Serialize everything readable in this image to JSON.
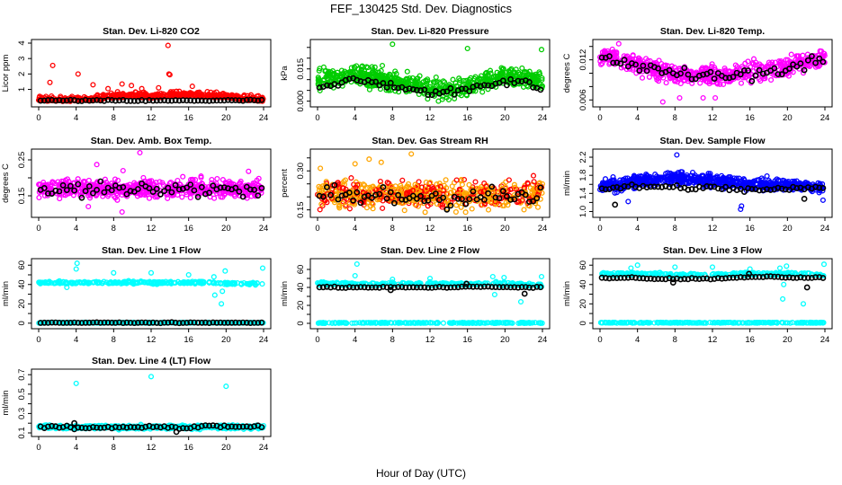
{
  "figure": {
    "title": "FEF_130425  Std. Dev. Diagnostics",
    "xlabel": "Hour of Day (UTC)"
  },
  "chart_data": [
    {
      "type": "scatter",
      "title": "Stan. Dev. Li-820 CO2",
      "ylabel": "Licor ppm",
      "xlim": [
        0,
        24
      ],
      "xticks": [
        0,
        4,
        8,
        12,
        16,
        20,
        24
      ],
      "ylim": [
        0.1,
        4
      ],
      "yticks": [
        1,
        2,
        3,
        4
      ],
      "ytick_labels": [
        "1",
        "2",
        "3",
        "4"
      ],
      "series": [
        {
          "name": "all",
          "color": "#ff0000",
          "n": 500,
          "base": [
            0.25,
            0.25,
            0.25,
            0.3,
            0.45,
            0.55,
            0.45,
            0.55,
            0.6,
            0.5,
            0.5,
            0.3,
            0.25
          ],
          "spread": 0.25,
          "skew": true,
          "outliers": [
            [
              1.2,
              1.45
            ],
            [
              1.5,
              2.55
            ],
            [
              4.2,
              2.0
            ],
            [
              5.8,
              1.3
            ],
            [
              7.4,
              1.05
            ],
            [
              8.9,
              1.35
            ],
            [
              9.9,
              1.25
            ],
            [
              11.0,
              1.05
            ],
            [
              12.8,
              1.1
            ],
            [
              13.8,
              3.85
            ],
            [
              13.9,
              2.0
            ],
            [
              14.0,
              1.95
            ],
            [
              16.4,
              1.2
            ]
          ]
        },
        {
          "name": "hourly",
          "color": "#000000",
          "n": 60,
          "base": [
            0.27,
            0.28,
            0.28,
            0.27,
            0.28,
            0.27,
            0.27,
            0.27,
            0.28,
            0.28,
            0.28,
            0.28,
            0.3
          ],
          "spread": 0.04
        }
      ]
    },
    {
      "type": "scatter",
      "title": "Stan. Dev. Li-820 Pressure",
      "ylabel": "kPa",
      "xlim": [
        0,
        24
      ],
      "xticks": [
        0,
        4,
        8,
        12,
        16,
        20,
        24
      ],
      "ylim": [
        -0.001,
        0.027
      ],
      "yticks": [
        0.0,
        0.005,
        0.01,
        0.015,
        0.02,
        0.025
      ],
      "ytick_labels": [
        "0.000",
        "",
        "",
        "0.015",
        "",
        ""
      ],
      "series": [
        {
          "name": "all",
          "color": "#00cc00",
          "n": 650,
          "base": [
            0.01,
            0.011,
            0.012,
            0.011,
            0.009,
            0.008,
            0.006,
            0.005,
            0.007,
            0.01,
            0.012,
            0.011,
            0.009
          ],
          "spread": 0.004,
          "outliers": [
            [
              8.0,
              0.0265
            ],
            [
              16.0,
              0.0245
            ],
            [
              23.9,
              0.024
            ],
            [
              12.9,
              0.0
            ]
          ]
        },
        {
          "name": "hourly",
          "color": "#000000",
          "n": 60,
          "base": [
            0.007,
            0.008,
            0.01,
            0.009,
            0.007,
            0.006,
            0.004,
            0.004,
            0.005,
            0.007,
            0.009,
            0.009,
            0.005
          ],
          "spread": 0.0015
        }
      ]
    },
    {
      "type": "scatter",
      "title": "Stan. Dev. Li-820 Temp.",
      "ylabel": "degrees C",
      "xlim": [
        0,
        24
      ],
      "xticks": [
        0,
        4,
        8,
        12,
        16,
        20,
        24
      ],
      "ylim": [
        0.0055,
        0.0145
      ],
      "yticks": [
        0.006,
        0.008,
        0.01,
        0.012,
        0.014
      ],
      "ytick_labels": [
        "0.006",
        "",
        "",
        "0.012",
        ""
      ],
      "series": [
        {
          "name": "all",
          "color": "#ff00ff",
          "n": 600,
          "base": [
            0.0125,
            0.0122,
            0.0112,
            0.0105,
            0.01,
            0.0098,
            0.0095,
            0.0098,
            0.0102,
            0.0105,
            0.011,
            0.0118,
            0.0123
          ],
          "spread": 0.0012,
          "outliers": [
            [
              2.0,
              0.0144
            ],
            [
              6.7,
              0.0057
            ],
            [
              8.5,
              0.0063
            ],
            [
              11.0,
              0.0063
            ],
            [
              12.3,
              0.0063
            ]
          ]
        },
        {
          "name": "hourly",
          "color": "#000000",
          "n": 60,
          "base": [
            0.0123,
            0.0115,
            0.0108,
            0.0105,
            0.0102,
            0.0095,
            0.0094,
            0.0098,
            0.0098,
            0.01,
            0.0108,
            0.0115,
            0.0127
          ],
          "spread": 0.0008
        }
      ]
    },
    {
      "type": "scatter",
      "title": "Stan. Dev. Amb. Box Temp.",
      "ylabel": "degrees C",
      "xlim": [
        0,
        24
      ],
      "xticks": [
        0,
        4,
        8,
        12,
        16,
        20,
        24
      ],
      "ylim": [
        0.1,
        0.27
      ],
      "yticks": [
        0.15,
        0.2,
        0.25
      ],
      "ytick_labels": [
        "0.15",
        "",
        "0.25"
      ],
      "series": [
        {
          "name": "all",
          "color": "#ff00ff",
          "n": 600,
          "base": [
            0.17,
            0.17,
            0.17,
            0.17,
            0.17,
            0.17,
            0.17,
            0.17,
            0.17,
            0.17,
            0.17,
            0.17,
            0.17
          ],
          "spread": 0.022,
          "outliers": [
            [
              10.8,
              0.27
            ],
            [
              6.2,
              0.237
            ],
            [
              9.0,
              0.22
            ],
            [
              22.4,
              0.218
            ],
            [
              8.9,
              0.105
            ],
            [
              5.3,
              0.12
            ]
          ]
        },
        {
          "name": "hourly",
          "color": "#000000",
          "n": 60,
          "base": [
            0.165,
            0.165,
            0.165,
            0.168,
            0.165,
            0.165,
            0.168,
            0.168,
            0.168,
            0.168,
            0.165,
            0.165,
            0.165
          ],
          "spread": 0.018
        }
      ]
    },
    {
      "type": "scatter",
      "title": "Stan. Dev. Gas Stream RH",
      "ylabel": "percent",
      "xlim": [
        0,
        24
      ],
      "xticks": [
        0,
        4,
        8,
        12,
        16,
        20,
        24
      ],
      "ylim": [
        0.135,
        0.37
      ],
      "yticks": [
        0.15,
        0.2,
        0.25,
        0.3,
        0.35
      ],
      "ytick_labels": [
        "0.15",
        "",
        "",
        "0.30",
        ""
      ],
      "series": [
        {
          "name": "all",
          "color": "#ffa500",
          "color2": "#ff0000",
          "n": 650,
          "base": [
            0.21,
            0.21,
            0.21,
            0.21,
            0.21,
            0.21,
            0.21,
            0.21,
            0.21,
            0.21,
            0.21,
            0.21,
            0.21
          ],
          "spread": 0.045,
          "outliers": [
            [
              10.0,
              0.365
            ],
            [
              5.5,
              0.345
            ],
            [
              6.8,
              0.333
            ],
            [
              4.0,
              0.327
            ],
            [
              0.3,
              0.31
            ]
          ]
        },
        {
          "name": "hourly",
          "color": "#000000",
          "n": 60,
          "base": [
            0.2,
            0.2,
            0.2,
            0.2,
            0.2,
            0.2,
            0.2,
            0.2,
            0.2,
            0.2,
            0.2,
            0.2,
            0.2
          ],
          "spread": 0.04
        }
      ]
    },
    {
      "type": "scatter",
      "title": "Stan. Dev. Sample Flow",
      "ylabel": "ml/min",
      "xlim": [
        0,
        24
      ],
      "xticks": [
        0,
        4,
        8,
        12,
        16,
        20,
        24
      ],
      "ylim": [
        0.95,
        2.3
      ],
      "yticks": [
        1.0,
        1.2,
        1.4,
        1.6,
        1.8,
        2.0,
        2.2
      ],
      "ytick_labels": [
        "1.0",
        "",
        "1.4",
        "",
        "1.8",
        "",
        "2.2"
      ],
      "series": [
        {
          "name": "all",
          "color": "#0000ff",
          "n": 650,
          "base": [
            1.55,
            1.58,
            1.65,
            1.72,
            1.75,
            1.72,
            1.68,
            1.65,
            1.6,
            1.58,
            1.58,
            1.55,
            1.52
          ],
          "spread": 0.12,
          "outliers": [
            [
              8.2,
              2.25
            ],
            [
              15.0,
              1.05
            ],
            [
              15.1,
              1.12
            ],
            [
              3.0,
              1.22
            ],
            [
              23.8,
              1.25
            ]
          ]
        },
        {
          "name": "hourly",
          "color": "#000000",
          "n": 60,
          "base": [
            1.5,
            1.52,
            1.55,
            1.55,
            1.53,
            1.52,
            1.52,
            1.5,
            1.48,
            1.47,
            1.5,
            1.52,
            1.5
          ],
          "spread": 0.05,
          "outliers": [
            [
              1.6,
              1.15
            ],
            [
              21.8,
              1.28
            ]
          ]
        }
      ]
    },
    {
      "type": "scatter",
      "title": "Stan. Dev. Line 1 Flow",
      "ylabel": "ml/min",
      "xlim": [
        0,
        24
      ],
      "xticks": [
        0,
        4,
        8,
        12,
        16,
        20,
        24
      ],
      "ylim": [
        -2,
        63
      ],
      "yticks": [
        0,
        10,
        20,
        30,
        40,
        50,
        60
      ],
      "ytick_labels": [
        "0",
        "",
        "20",
        "",
        "40",
        "",
        "60"
      ],
      "series": [
        {
          "name": "all",
          "color": "#00ffff",
          "n": 500,
          "base": [
            42,
            42,
            42,
            42,
            42,
            42,
            42,
            42,
            42,
            42,
            41,
            41,
            41
          ],
          "spread": 1.2,
          "low": 0.5,
          "outliers": [
            [
              4.1,
              62
            ],
            [
              4.0,
              56
            ],
            [
              8.0,
              52
            ],
            [
              12.0,
              52
            ],
            [
              16.0,
              50
            ],
            [
              18.7,
              48
            ],
            [
              19.9,
              54
            ],
            [
              23.9,
              57
            ],
            [
              18.8,
              29
            ],
            [
              19.5,
              20
            ],
            [
              19.6,
              33
            ],
            [
              3.0,
              37
            ]
          ]
        },
        {
          "name": "hourly",
          "color": "#000000",
          "n": 60,
          "base": [
            0.5,
            0.5,
            0.5,
            0.5,
            0.5,
            0.5,
            0.5,
            0.5,
            0.5,
            0.5,
            0.5,
            0.5,
            0.5
          ],
          "spread": 0.3
        }
      ]
    },
    {
      "type": "scatter",
      "title": "Stan. Dev. Line 2 Flow",
      "ylabel": "ml/min",
      "xlim": [
        0,
        24
      ],
      "xticks": [
        0,
        4,
        8,
        12,
        16,
        20,
        24
      ],
      "ylim": [
        -2,
        68
      ],
      "yticks": [
        0,
        10,
        20,
        30,
        40,
        50,
        60
      ],
      "ytick_labels": [
        "0",
        "",
        "20",
        "",
        "40",
        "",
        "60"
      ],
      "series": [
        {
          "name": "all",
          "color": "#00ffff",
          "n": 500,
          "base": [
            44,
            44,
            44,
            44,
            44,
            44,
            44,
            44,
            44,
            44,
            44,
            43,
            42
          ],
          "spread": 1.5,
          "low": 0.5,
          "outliers": [
            [
              4.2,
              66
            ],
            [
              4.0,
              53
            ],
            [
              8.0,
              49
            ],
            [
              12.0,
              50
            ],
            [
              18.7,
              52
            ],
            [
              19.9,
              51
            ],
            [
              23.9,
              52
            ],
            [
              18.9,
              32
            ],
            [
              21.7,
              24
            ]
          ]
        },
        {
          "name": "hourly",
          "color": "#000000",
          "n": 60,
          "base": [
            40,
            40,
            40,
            40,
            40,
            40,
            40,
            40,
            41,
            41,
            40,
            40,
            40
          ],
          "spread": 0.6,
          "outliers": [
            [
              22.1,
              33
            ],
            [
              15.9,
              44
            ],
            [
              7.8,
              37
            ]
          ]
        }
      ]
    },
    {
      "type": "scatter",
      "title": "Stan. Dev. Line 3 Flow",
      "ylabel": "ml/min",
      "xlim": [
        0,
        24
      ],
      "xticks": [
        0,
        4,
        8,
        12,
        16,
        20,
        24
      ],
      "ylim": [
        -2,
        63
      ],
      "yticks": [
        0,
        10,
        20,
        30,
        40,
        50,
        60
      ],
      "ytick_labels": [
        "0",
        "",
        "20",
        "",
        "40",
        "",
        "60"
      ],
      "series": [
        {
          "name": "all",
          "color": "#00ffff",
          "n": 500,
          "base": [
            51,
            51,
            51,
            51,
            50,
            50,
            50,
            51,
            51,
            51,
            51,
            51,
            50
          ],
          "spread": 1.3,
          "low": 0.5,
          "outliers": [
            [
              4.0,
              60
            ],
            [
              3.3,
              57
            ],
            [
              8.0,
              58
            ],
            [
              12.0,
              58
            ],
            [
              16.0,
              56
            ],
            [
              19.2,
              57
            ],
            [
              19.9,
              59
            ],
            [
              23.9,
              61
            ],
            [
              19.5,
              25
            ],
            [
              21.7,
              20
            ],
            [
              19.6,
              40
            ]
          ]
        },
        {
          "name": "hourly",
          "color": "#000000",
          "n": 60,
          "base": [
            47,
            47,
            47,
            46,
            46,
            46,
            46,
            47,
            48,
            48,
            47,
            47,
            47
          ],
          "spread": 0.6,
          "outliers": [
            [
              22.1,
              37
            ],
            [
              7.8,
              42
            ],
            [
              15.9,
              51
            ]
          ]
        }
      ]
    },
    {
      "type": "scatter",
      "title": "Stan. Dev. Line 4 (LT) Flow",
      "ylabel": "ml/min",
      "xlim": [
        0,
        24
      ],
      "xticks": [
        0,
        4,
        8,
        12,
        16,
        20,
        24
      ],
      "ylim": [
        0.1,
        0.72
      ],
      "yticks": [
        0.1,
        0.2,
        0.3,
        0.4,
        0.5,
        0.6,
        0.7
      ],
      "ytick_labels": [
        "0.1",
        "",
        "0.3",
        "",
        "0.5",
        "",
        "0.7"
      ],
      "series": [
        {
          "name": "all",
          "color": "#00ffff",
          "n": 500,
          "base": [
            0.16,
            0.16,
            0.16,
            0.16,
            0.16,
            0.16,
            0.16,
            0.16,
            0.16,
            0.16,
            0.16,
            0.16,
            0.16
          ],
          "spread": 0.018,
          "outliers": [
            [
              4.0,
              0.61
            ],
            [
              12.0,
              0.68
            ],
            [
              20.0,
              0.58
            ]
          ]
        },
        {
          "name": "hourly",
          "color": "#000000",
          "n": 60,
          "base": [
            0.16,
            0.16,
            0.15,
            0.15,
            0.16,
            0.16,
            0.17,
            0.16,
            0.15,
            0.17,
            0.17,
            0.16,
            0.16
          ],
          "spread": 0.015,
          "outliers": [
            [
              3.8,
              0.2
            ],
            [
              14.7,
              0.11
            ]
          ]
        }
      ]
    }
  ]
}
